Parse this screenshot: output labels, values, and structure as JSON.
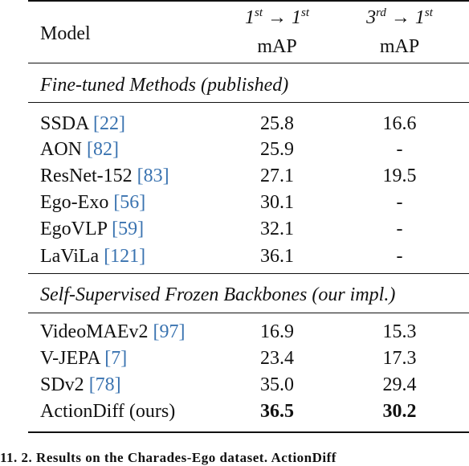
{
  "header": {
    "model": "Model",
    "col2_src": "1",
    "col2_src_sup": "st",
    "col2_arrow": "→",
    "col2_dst": "1",
    "col2_dst_sup": "st",
    "col3_src": "3",
    "col3_src_sup": "rd",
    "col3_arrow": "→",
    "col3_dst": "1",
    "col3_dst_sup": "st",
    "metric2": "mAP",
    "metric3": "mAP"
  },
  "sections": [
    {
      "title": "Fine-tuned Methods (published)",
      "rows": [
        {
          "name": "SSDA",
          "ref": "[22]",
          "v1": "25.8",
          "v2": "16.6"
        },
        {
          "name": "AON",
          "ref": "[82]",
          "v1": "25.9",
          "v2": "-"
        },
        {
          "name": "ResNet-152",
          "ref": "[83]",
          "v1": "27.1",
          "v2": "19.5"
        },
        {
          "name": "Ego-Exo",
          "ref": "[56]",
          "v1": "30.1",
          "v2": "-"
        },
        {
          "name": "EgoVLP",
          "ref": "[59]",
          "v1": "32.1",
          "v2": "-"
        },
        {
          "name": "LaViLa",
          "ref": "[121]",
          "v1": "36.1",
          "v2": "-"
        }
      ]
    },
    {
      "title": "Self-Supervised Frozen Backbones (our impl.)",
      "rows": [
        {
          "name": "VideoMAEv2",
          "ref": "[97]",
          "v1": "16.9",
          "v2": "15.3"
        },
        {
          "name": "V-JEPA",
          "ref": "[7]",
          "v1": "23.4",
          "v2": "17.3"
        },
        {
          "name": "SDv2",
          "ref": "[78]",
          "v1": "35.0",
          "v2": "29.4"
        },
        {
          "name": "ActionDiff (ours)",
          "ref": "",
          "v1": "36.5",
          "v2": "30.2"
        }
      ]
    }
  ],
  "caption": "11. 2. Results on the Charades-Ego dataset. ActionDiff"
}
